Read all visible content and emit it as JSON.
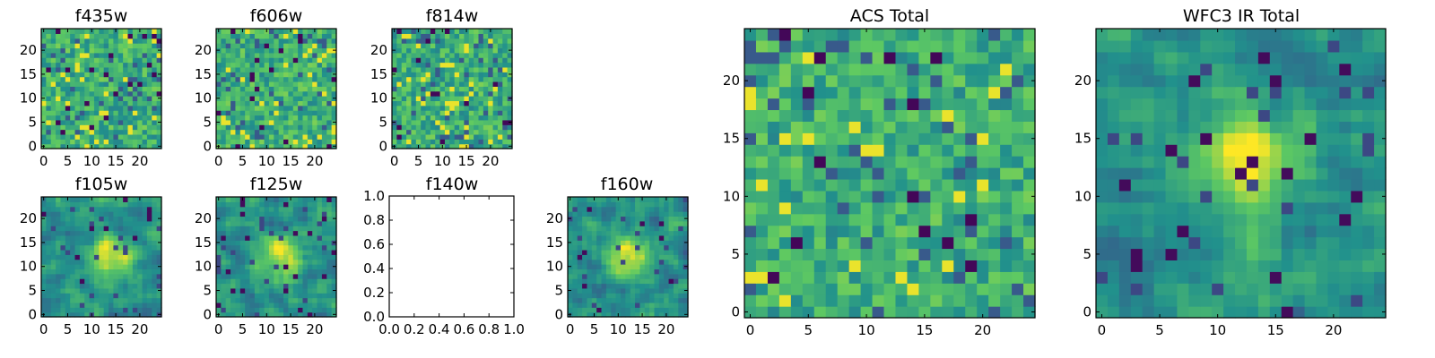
{
  "figure": {
    "background": "#ffffff",
    "colormap": "viridis",
    "colormap_stops": [
      "#440154",
      "#3b528b",
      "#21918c",
      "#5ec962",
      "#fde725"
    ]
  },
  "chart_data": [
    {
      "type": "heatmap",
      "title": "f435w",
      "grid_size": [
        25,
        25
      ],
      "xticks": [
        "0",
        "5",
        "10",
        "15",
        "20"
      ],
      "yticks": [
        "0",
        "5",
        "10",
        "15",
        "20"
      ],
      "xlim": [
        -0.5,
        24.5
      ],
      "ylim": [
        -0.5,
        24.5
      ],
      "texture": "noise"
    },
    {
      "type": "heatmap",
      "title": "f606w",
      "grid_size": [
        25,
        25
      ],
      "xticks": [
        "0",
        "5",
        "10",
        "15",
        "20"
      ],
      "yticks": [
        "0",
        "5",
        "10",
        "15",
        "20"
      ],
      "xlim": [
        -0.5,
        24.5
      ],
      "ylim": [
        -0.5,
        24.5
      ],
      "texture": "noise"
    },
    {
      "type": "heatmap",
      "title": "f814w",
      "grid_size": [
        25,
        25
      ],
      "xticks": [
        "0",
        "5",
        "10",
        "15",
        "20"
      ],
      "yticks": [
        "0",
        "5",
        "10",
        "15",
        "20"
      ],
      "xlim": [
        -0.5,
        24.5
      ],
      "ylim": [
        -0.5,
        24.5
      ],
      "texture": "noise"
    },
    {
      "type": "heatmap",
      "title": "ACS Total",
      "grid_size": [
        25,
        25
      ],
      "xticks": [
        "0",
        "5",
        "10",
        "15",
        "20"
      ],
      "yticks": [
        "0",
        "5",
        "10",
        "15",
        "20"
      ],
      "xlim": [
        -0.5,
        24.5
      ],
      "ylim": [
        -0.5,
        24.5
      ],
      "texture": "noise"
    },
    {
      "type": "heatmap",
      "title": "f105w",
      "grid_size": [
        25,
        25
      ],
      "xticks": [
        "0",
        "5",
        "10",
        "15",
        "20"
      ],
      "yticks": [
        "0",
        "5",
        "10",
        "15",
        "20"
      ],
      "xlim": [
        -0.5,
        24.5
      ],
      "ylim": [
        -0.5,
        24.5
      ],
      "texture": "blob",
      "peak": [
        14,
        12
      ]
    },
    {
      "type": "heatmap",
      "title": "f125w",
      "grid_size": [
        25,
        25
      ],
      "xticks": [
        "0",
        "5",
        "10",
        "15",
        "20"
      ],
      "yticks": [
        "0",
        "5",
        "10",
        "15",
        "20"
      ],
      "xlim": [
        -0.5,
        24.5
      ],
      "ylim": [
        -0.5,
        24.5
      ],
      "texture": "blob",
      "peak": [
        13,
        12
      ]
    },
    {
      "type": "empty",
      "title": "f140w",
      "xticks": [
        "0.0",
        "0.2",
        "0.4",
        "0.6",
        "0.8",
        "1.0"
      ],
      "yticks": [
        "0.0",
        "0.2",
        "0.4",
        "0.6",
        "0.8",
        "1.0"
      ],
      "xlim": [
        0,
        1
      ],
      "ylim": [
        0,
        1
      ]
    },
    {
      "type": "heatmap",
      "title": "f160w",
      "grid_size": [
        25,
        25
      ],
      "xticks": [
        "0",
        "5",
        "10",
        "15",
        "20"
      ],
      "yticks": [
        "0",
        "5",
        "10",
        "15",
        "20"
      ],
      "xlim": [
        -0.5,
        24.5
      ],
      "ylim": [
        -0.5,
        24.5
      ],
      "texture": "blob",
      "peak": [
        12,
        12
      ]
    },
    {
      "type": "heatmap",
      "title": "WFC3 IR Total",
      "grid_size": [
        25,
        25
      ],
      "xticks": [
        "0",
        "5",
        "10",
        "15",
        "20"
      ],
      "yticks": [
        "0",
        "5",
        "10",
        "15",
        "20"
      ],
      "xlim": [
        -0.5,
        24.5
      ],
      "ylim": [
        -0.5,
        24.5
      ],
      "texture": "blob",
      "peak": [
        12,
        13
      ]
    }
  ]
}
